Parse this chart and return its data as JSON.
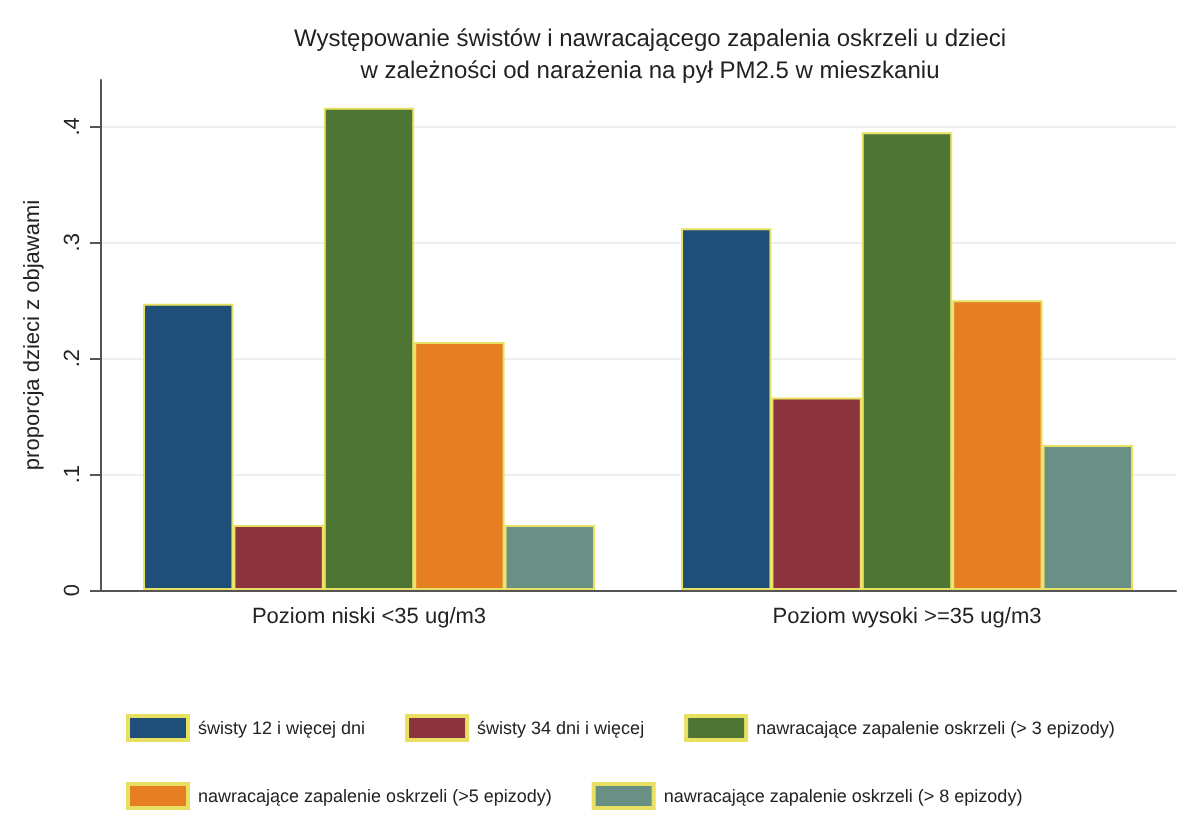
{
  "chart_data": {
    "type": "bar",
    "title": "Występowanie świstów i nawracającego zapalenia oskrzeli u dzieci\nw zależności od narażenia na pył PM2.5 w mieszkaniu",
    "ylabel": "proporcja dzieci z objawami",
    "categories": [
      "Poziom niski <35 ug/m3",
      "Poziom wysoki >=35 ug/m3"
    ],
    "series": [
      {
        "name": "świsty 12 i więcej dni",
        "color": "#1f4e79",
        "values": [
          0.247,
          0.312
        ]
      },
      {
        "name": "świsty 34 dni i więcej",
        "color": "#8b3440",
        "values": [
          0.056,
          0.166
        ]
      },
      {
        "name": "nawracające zapalenie oskrzeli (> 3 epizody)",
        "color": "#4f7535",
        "values": [
          0.416,
          0.395
        ]
      },
      {
        "name": "nawracające zapalenie oskrzeli (>5 epizody)",
        "color": "#e67e22",
        "values": [
          0.214,
          0.25
        ]
      },
      {
        "name": "nawracające zapalenie oskrzeli (> 8 epizody)",
        "color": "#6a8f84",
        "values": [
          0.056,
          0.125
        ]
      }
    ],
    "ylim": [
      0,
      0.44
    ],
    "yticks": [
      0,
      {
        "value": 0.1,
        "label": ".1"
      },
      {
        "value": 0.2,
        "label": ".2"
      },
      {
        "value": 0.3,
        "label": ".3"
      },
      {
        "value": 0.4,
        "label": ".4"
      }
    ],
    "grid": "y",
    "legend": "bottom"
  }
}
